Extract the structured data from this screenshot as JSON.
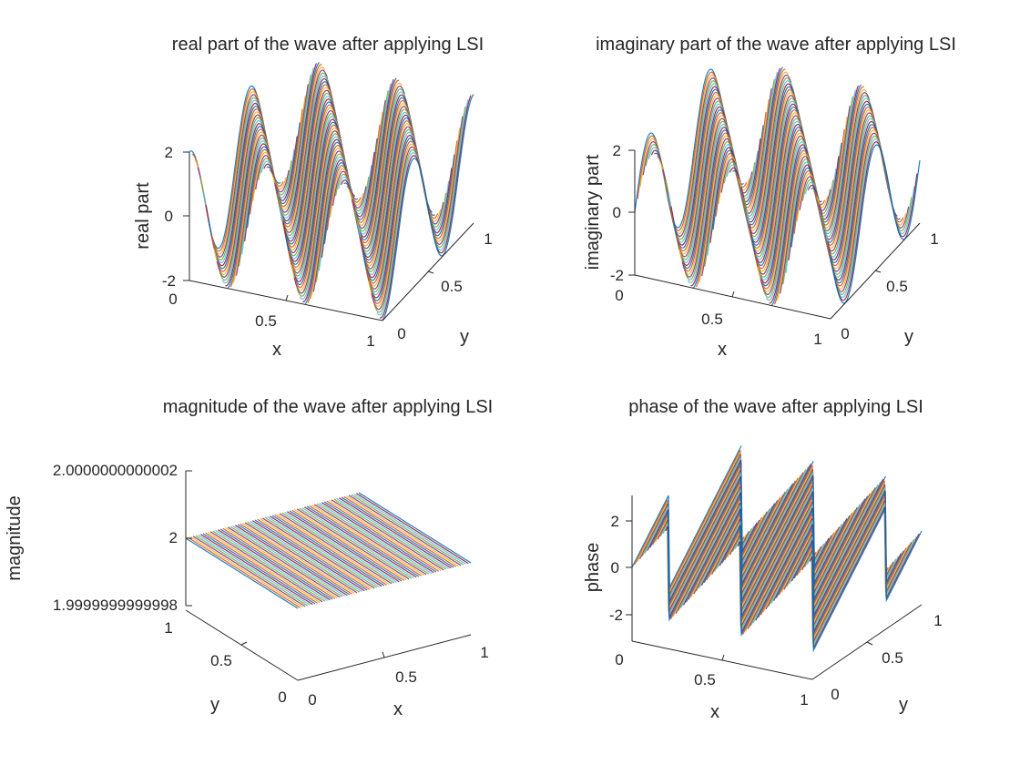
{
  "figure": {
    "background": "#ffffff",
    "line_colors": [
      "#0072bd",
      "#d95319",
      "#edb120",
      "#7e2f8e",
      "#77ac30",
      "#4dbeee",
      "#a2142f"
    ]
  },
  "chart_data": [
    {
      "type": "surface",
      "title": "real part of the wave after applying LSI",
      "xlabel": "x",
      "ylabel": "y",
      "zlabel": "real part",
      "xlim": [
        0,
        1
      ],
      "ylim": [
        0,
        1
      ],
      "zlim": [
        -2,
        2
      ],
      "x_ticks": [
        "0",
        "0.5",
        "1"
      ],
      "y_ticks": [
        "0",
        "0.5",
        "1"
      ],
      "z_ticks": [
        "-2",
        "0",
        "2"
      ],
      "function": "z = 2*cos(2*pi*(2.5*x + 1.5*y))",
      "amplitude": 2,
      "kx_cycles": 2.5,
      "ky_cycles": 1.5,
      "phase_shift_cycles": 0
    },
    {
      "type": "surface",
      "title": "imaginary part of the wave after applying LSI",
      "xlabel": "x",
      "ylabel": "y",
      "zlabel": "imaginary part",
      "xlim": [
        0,
        1
      ],
      "ylim": [
        0,
        1
      ],
      "zlim": [
        -2,
        2
      ],
      "x_ticks": [
        "0",
        "0.5",
        "1"
      ],
      "y_ticks": [
        "0",
        "0.5",
        "1"
      ],
      "z_ticks": [
        "-2",
        "0",
        "2"
      ],
      "function": "z = 2*sin(2*pi*(2.5*x + 1.5*y))",
      "amplitude": 2,
      "kx_cycles": 2.5,
      "ky_cycles": 1.5,
      "phase_shift_cycles": 0.25
    },
    {
      "type": "surface",
      "title": "magnitude of the wave after applying LSI",
      "xlabel": "x",
      "ylabel": "y",
      "zlabel": "magnitude",
      "xlim": [
        0,
        1
      ],
      "ylim": [
        0,
        1
      ],
      "zlim": [
        1.9999999999998,
        2.0000000000002
      ],
      "x_ticks": [
        "0",
        "0.5",
        "1"
      ],
      "y_ticks": [
        "0",
        "0.5",
        "1"
      ],
      "z_ticks": [
        "1.9999999999998",
        "2",
        "2.0000000000002"
      ],
      "function": "z = 2",
      "constant_value": 2
    },
    {
      "type": "surface",
      "title": "phase of the wave after applying LSI",
      "xlabel": "x",
      "ylabel": "y",
      "zlabel": "phase",
      "xlim": [
        0,
        1
      ],
      "ylim": [
        0,
        1
      ],
      "zlim": [
        -3.14159,
        3.14159
      ],
      "x_ticks": [
        "0",
        "0.5",
        "1"
      ],
      "y_ticks": [
        "0",
        "0.5",
        "1"
      ],
      "z_ticks": [
        "-2",
        "0",
        "2"
      ],
      "function": "z = angle(exp(i*2*pi*(2.5*x + 1.5*y)))",
      "kx_cycles": 2.5,
      "ky_cycles": 1.5
    }
  ]
}
